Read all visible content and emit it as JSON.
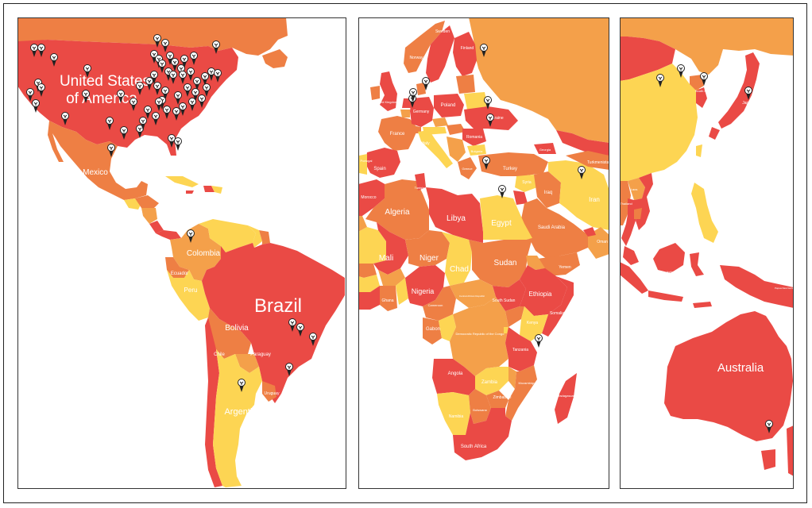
{
  "map": {
    "colors": {
      "red": "#ea4a45",
      "orange": "#ee7f44",
      "light_orange": "#f4a04a",
      "yellow": "#fdd553",
      "white": "#ffffff",
      "pin_fill": "#ffffff",
      "pin_stroke": "#222222"
    },
    "panels": [
      {
        "name": "americas",
        "labels": [
          "United States",
          "of America",
          "Mexico",
          "Colombia",
          "Ecuador",
          "Peru",
          "Brazil",
          "Bolivia",
          "Chile",
          "Paraguay",
          "Uruguay",
          "Argentina"
        ]
      },
      {
        "name": "europe-africa",
        "labels": [
          "Sweden",
          "Finland",
          "Norway",
          "United Kingdom",
          "Poland",
          "Germany",
          "France",
          "Italy",
          "Romania",
          "Ukraine",
          "Bulgaria",
          "Spain",
          "Portugal",
          "Turkey",
          "Greece",
          "Tunisia",
          "Morocco",
          "Algeria",
          "Libya",
          "Egypt",
          "Syria",
          "Iraq",
          "Iran",
          "Saudi Arabia",
          "Yemen",
          "Oman",
          "Mali",
          "Niger",
          "Chad",
          "Sudan",
          "Nigeria",
          "Ghana",
          "Cameroon",
          "Central African Republic",
          "South Sudan",
          "Ethiopia",
          "Somalia",
          "Kenya",
          "Gabon",
          "Democratic Republic of the Congo",
          "Tanzania",
          "Angola",
          "Zambia",
          "Zimbabwe",
          "Mozambique",
          "Namibia",
          "Botswana",
          "South Africa",
          "Madagascar",
          "Georgia",
          "Turkmenistan"
        ]
      },
      {
        "name": "asia-oceania",
        "labels": [
          "Japan",
          "South Korea",
          "Laos",
          "Thailand",
          "Indonesia",
          "Papua New Guinea",
          "Australia"
        ]
      }
    ],
    "pins": {
      "americas": 62,
      "europe_africa": 10,
      "asia_oceania": 5
    }
  }
}
